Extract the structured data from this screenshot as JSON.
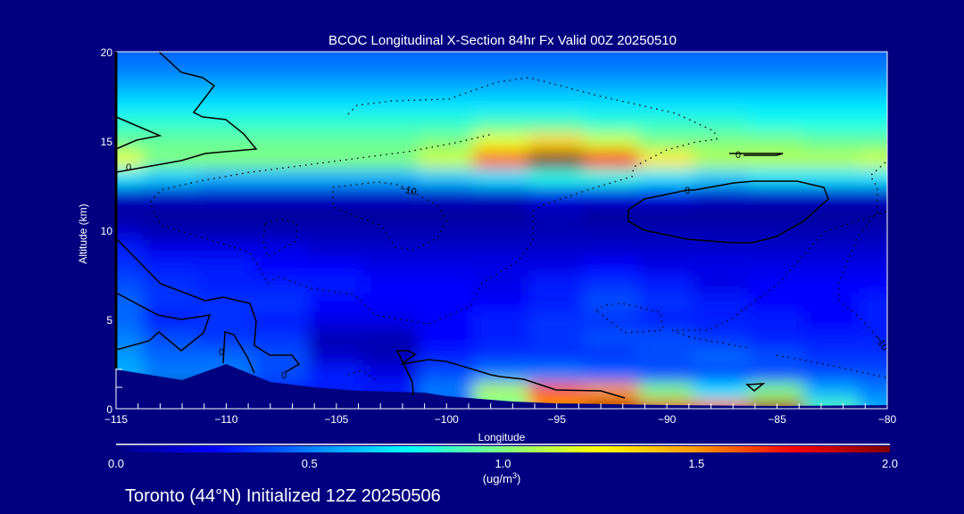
{
  "chart_data": {
    "type": "heatmap",
    "title": "BCOC Longitudinal X-Section 84hr  Fx Valid 00Z 20250510",
    "xlabel": "Longitude",
    "ylabel": "Altitude (km)",
    "xlim": [
      -115,
      -80
    ],
    "ylim": [
      0,
      20
    ],
    "x_ticks": [
      -115,
      -110,
      -105,
      -100,
      -95,
      -90,
      -85,
      -80
    ],
    "x_tick_labels": [
      "−115",
      "−110",
      "−105",
      "−100",
      "−95",
      "−90",
      "−85",
      "−80"
    ],
    "y_ticks": [
      0,
      5,
      10,
      15,
      20
    ],
    "y_tick_labels": [
      "0",
      "5",
      "10",
      "15",
      "20"
    ],
    "x": [
      -115,
      -112.5,
      -110,
      -107.5,
      -105,
      -102.5,
      -100,
      -97.5,
      -95,
      -92.5,
      -90,
      -87.5,
      -85,
      -82.5,
      -80
    ],
    "y": [
      0,
      1,
      2,
      3,
      4,
      5,
      6,
      7,
      8,
      9,
      10,
      11,
      12,
      13,
      14,
      15,
      16,
      17,
      18,
      19,
      20
    ],
    "z": [
      [
        0,
        0,
        0,
        0,
        0,
        0,
        0.3,
        0.9,
        1.5,
        1.9,
        1.8,
        1.6,
        1.9,
        0.9,
        0.6
      ],
      [
        0,
        0,
        0,
        0.3,
        0.3,
        0.3,
        0.5,
        1.1,
        1.6,
        1.5,
        1.0,
        0.7,
        1.0,
        0.6,
        0.5
      ],
      [
        0.6,
        0.5,
        0.5,
        0.4,
        0.3,
        0.2,
        0.4,
        0.5,
        0.5,
        0.45,
        0.4,
        0.4,
        0.4,
        0.4,
        0.4
      ],
      [
        0.55,
        0.45,
        0.45,
        0.4,
        0.15,
        0.1,
        0.3,
        0.35,
        0.35,
        0.35,
        0.4,
        0.45,
        0.4,
        0.35,
        0.35
      ],
      [
        0.5,
        0.4,
        0.35,
        0.35,
        0.1,
        0.1,
        0.25,
        0.3,
        0.35,
        0.4,
        0.4,
        0.35,
        0.3,
        0.3,
        0.3
      ],
      [
        0.45,
        0.3,
        0.35,
        0.3,
        0.2,
        0.2,
        0.25,
        0.3,
        0.35,
        0.35,
        0.3,
        0.3,
        0.3,
        0.25,
        0.3
      ],
      [
        0.45,
        0.35,
        0.35,
        0.35,
        0.25,
        0.25,
        0.25,
        0.25,
        0.3,
        0.4,
        0.35,
        0.3,
        0.25,
        0.25,
        0.3
      ],
      [
        0.4,
        0.35,
        0.3,
        0.3,
        0.3,
        0.25,
        0.25,
        0.2,
        0.3,
        0.35,
        0.3,
        0.2,
        0.25,
        0.25,
        0.25
      ],
      [
        0.35,
        0.3,
        0.3,
        0.25,
        0.25,
        0.2,
        0.2,
        0.2,
        0.2,
        0.25,
        0.2,
        0.2,
        0.2,
        0.2,
        0.2
      ],
      [
        0.3,
        0.2,
        0.2,
        0.2,
        0.15,
        0.15,
        0.15,
        0.15,
        0.15,
        0.15,
        0.15,
        0.15,
        0.15,
        0.15,
        0.15
      ],
      [
        0.15,
        0.1,
        0.1,
        0.1,
        0.1,
        0.1,
        0.1,
        0.1,
        0.1,
        0.1,
        0.1,
        0.1,
        0.1,
        0.1,
        0.1
      ],
      [
        0.05,
        0.05,
        0.05,
        0.05,
        0.05,
        0.05,
        0.05,
        0.05,
        0.1,
        0.05,
        0.05,
        0.05,
        0.05,
        0.05,
        0.05
      ],
      [
        0.15,
        0.15,
        0.15,
        0.15,
        0.15,
        0.15,
        0.15,
        0.15,
        0.2,
        0.2,
        0.2,
        0.15,
        0.15,
        0.15,
        0.15
      ],
      [
        0.7,
        0.65,
        0.6,
        0.6,
        0.6,
        0.6,
        0.65,
        0.7,
        0.8,
        0.8,
        0.7,
        0.65,
        0.7,
        0.7,
        0.7
      ],
      [
        1.2,
        1.0,
        1.0,
        1.0,
        1.0,
        1.0,
        1.15,
        1.6,
        2.0,
        1.75,
        1.3,
        1.1,
        1.1,
        1.1,
        1.15
      ],
      [
        0.95,
        0.95,
        0.95,
        0.95,
        0.95,
        0.95,
        1.0,
        1.2,
        1.35,
        1.15,
        1.0,
        1.0,
        1.0,
        0.95,
        0.95
      ],
      [
        0.85,
        0.85,
        0.85,
        0.85,
        0.85,
        0.85,
        0.85,
        0.9,
        0.9,
        0.85,
        0.85,
        0.85,
        0.8,
        0.8,
        0.8
      ],
      [
        0.7,
        0.7,
        0.7,
        0.7,
        0.7,
        0.7,
        0.7,
        0.7,
        0.7,
        0.7,
        0.7,
        0.7,
        0.7,
        0.7,
        0.7
      ],
      [
        0.6,
        0.6,
        0.6,
        0.6,
        0.6,
        0.6,
        0.6,
        0.6,
        0.6,
        0.6,
        0.6,
        0.6,
        0.6,
        0.6,
        0.6
      ],
      [
        0.5,
        0.5,
        0.5,
        0.5,
        0.5,
        0.5,
        0.5,
        0.5,
        0.5,
        0.5,
        0.5,
        0.5,
        0.5,
        0.5,
        0.5
      ],
      [
        0.45,
        0.45,
        0.45,
        0.45,
        0.45,
        0.45,
        0.45,
        0.45,
        0.45,
        0.45,
        0.45,
        0.45,
        0.45,
        0.45,
        0.45
      ]
    ],
    "terrain": {
      "lon": [
        -115,
        -112,
        -110,
        -108,
        -106,
        -104,
        -101,
        -100,
        -97,
        -95,
        -90,
        -85,
        -80
      ],
      "alt": [
        2.2,
        1.6,
        2.5,
        1.5,
        1.2,
        1.0,
        0.9,
        0.7,
        0.4,
        0.3,
        0.2,
        0.15,
        0.2
      ]
    },
    "contour_labels": [
      "0",
      "0",
      "0",
      "−10",
      "0",
      "0",
      "−10"
    ],
    "colorbar": {
      "range": [
        0,
        2
      ],
      "tick_labels": [
        "0.0",
        "0.5",
        "1.0",
        "1.5",
        "2.0"
      ],
      "units": "(ug/m",
      "units_sup": "3",
      "units_close": ")",
      "colors": [
        "#000080",
        "#0000ff",
        "#0080ff",
        "#00ffff",
        "#80ff80",
        "#ffff00",
        "#ff9900",
        "#ff0000",
        "#800000"
      ]
    },
    "footer": "Toronto (44°N) Initialized 12Z 20250506"
  }
}
